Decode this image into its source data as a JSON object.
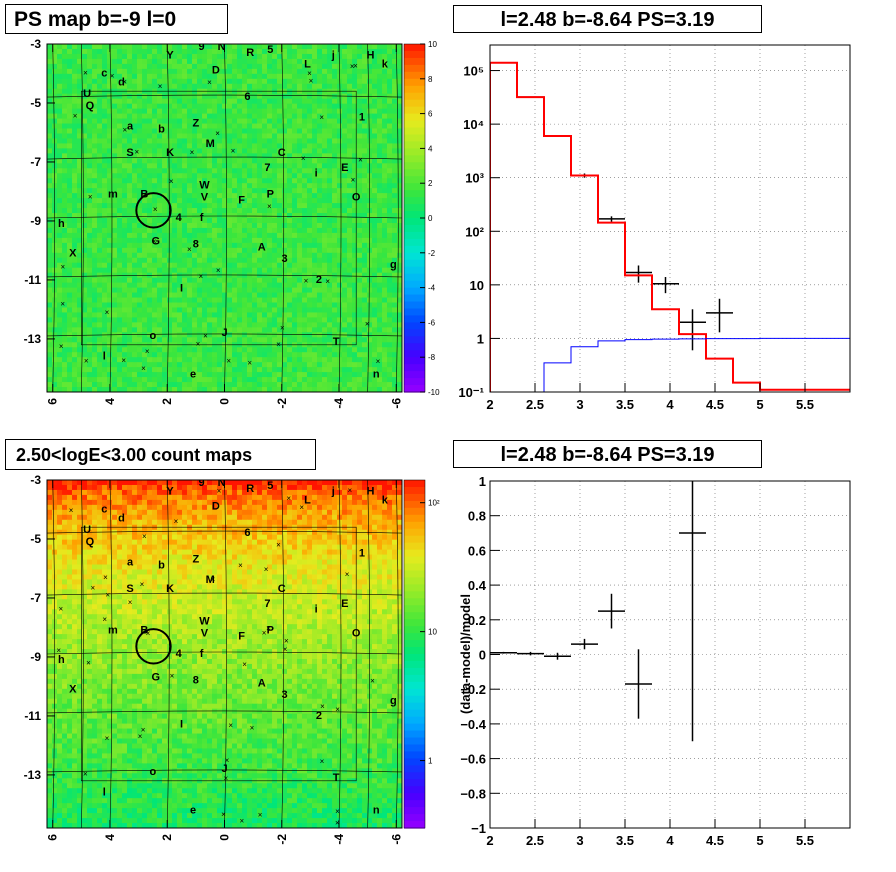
{
  "panels": {
    "ps_map_title": "PS map b=-9 l=0",
    "count_map_title": "2.50<logE<3.00 count maps",
    "spectrum_title": "l=2.48 b=-8.64 PS=3.19",
    "residual_title": "l=2.48 b=-8.64 PS=3.19"
  },
  "maps": {
    "x_ticks": [
      "6",
      "4",
      "2",
      "0",
      "-2",
      "-4",
      "-6"
    ],
    "y_ticks": [
      "-3",
      "-5",
      "-7",
      "-9",
      "-11",
      "-13"
    ],
    "ps_colorbar_ticks": [
      "10",
      "8",
      "6",
      "4",
      "2",
      "0",
      "-2",
      "-4",
      "-6",
      "-8",
      "-10"
    ],
    "count_colorbar_ticks": [
      "10²",
      "10",
      "1"
    ],
    "source_labels": [
      {
        "t": "Y",
        "l": 1.9,
        "b": -3.5
      },
      {
        "t": "9",
        "l": 0.8,
        "b": -3.2
      },
      {
        "t": "N",
        "l": 0.1,
        "b": -3.2
      },
      {
        "t": "R",
        "l": -0.9,
        "b": -3.4
      },
      {
        "t": "5",
        "l": -1.6,
        "b": -3.3
      },
      {
        "t": "L",
        "l": -2.9,
        "b": -3.8
      },
      {
        "t": "j",
        "l": -3.8,
        "b": -3.5
      },
      {
        "t": "H",
        "l": -5.1,
        "b": -3.5
      },
      {
        "t": "k",
        "l": -5.6,
        "b": -3.8
      },
      {
        "t": "c",
        "l": 4.2,
        "b": -4.1
      },
      {
        "t": "d",
        "l": 3.6,
        "b": -4.4
      },
      {
        "t": "D",
        "l": 0.3,
        "b": -4.0
      },
      {
        "t": "U",
        "l": 4.8,
        "b": -4.8
      },
      {
        "t": "Q",
        "l": 4.7,
        "b": -5.2
      },
      {
        "t": "6",
        "l": -0.8,
        "b": -4.9
      },
      {
        "t": "1",
        "l": -4.8,
        "b": -5.6
      },
      {
        "t": "a",
        "l": 3.3,
        "b": -5.9
      },
      {
        "t": "b",
        "l": 2.2,
        "b": -6.0
      },
      {
        "t": "Z",
        "l": 1.0,
        "b": -5.8
      },
      {
        "t": "M",
        "l": 0.5,
        "b": -6.5
      },
      {
        "t": "S",
        "l": 3.3,
        "b": -6.8
      },
      {
        "t": "K",
        "l": 1.9,
        "b": -6.8
      },
      {
        "t": "C",
        "l": -2.0,
        "b": -6.8
      },
      {
        "t": "7",
        "l": -1.5,
        "b": -7.3
      },
      {
        "t": "i",
        "l": -3.2,
        "b": -7.5
      },
      {
        "t": "E",
        "l": -4.2,
        "b": -7.3
      },
      {
        "t": "m",
        "l": 3.9,
        "b": -8.2
      },
      {
        "t": "B",
        "l": 2.8,
        "b": -8.2
      },
      {
        "t": "W",
        "l": 0.7,
        "b": -7.9
      },
      {
        "t": "V",
        "l": 0.7,
        "b": -8.3
      },
      {
        "t": "F",
        "l": -0.6,
        "b": -8.4
      },
      {
        "t": "P",
        "l": -1.6,
        "b": -8.2
      },
      {
        "t": "O",
        "l": -4.6,
        "b": -8.3
      },
      {
        "t": "4",
        "l": 1.6,
        "b": -9.0
      },
      {
        "t": "f",
        "l": 0.8,
        "b": -9.0
      },
      {
        "t": "h",
        "l": 5.7,
        "b": -9.2
      },
      {
        "t": "G",
        "l": 2.4,
        "b": -9.8
      },
      {
        "t": "8",
        "l": 1.0,
        "b": -9.9
      },
      {
        "t": "A",
        "l": -1.3,
        "b": -10.0
      },
      {
        "t": "3",
        "l": -2.1,
        "b": -10.4
      },
      {
        "t": "X",
        "l": 5.3,
        "b": -10.2
      },
      {
        "t": "g",
        "l": -5.9,
        "b": -10.6
      },
      {
        "t": "2",
        "l": -3.3,
        "b": -11.1
      },
      {
        "t": "I",
        "l": 1.5,
        "b": -11.4
      },
      {
        "t": "J",
        "l": 0.0,
        "b": -12.9
      },
      {
        "t": "o",
        "l": 2.5,
        "b": -13.0
      },
      {
        "t": "T",
        "l": -3.9,
        "b": -13.2
      },
      {
        "t": "l",
        "l": 4.2,
        "b": -13.7
      },
      {
        "t": "e",
        "l": 1.1,
        "b": -14.3
      },
      {
        "t": "n",
        "l": -5.3,
        "b": -14.3
      }
    ]
  },
  "spectrum": {
    "x_ticks": [
      "2",
      "2.5",
      "3",
      "3.5",
      "4",
      "4.5",
      "5",
      "5.5"
    ],
    "y_ticks": [
      "10⁻¹",
      "1",
      "10",
      "10²",
      "10³",
      "10⁴",
      "10⁵"
    ]
  },
  "residual": {
    "ylabel": "(data-model)/model",
    "x_ticks": [
      "2",
      "2.5",
      "3",
      "3.5",
      "4",
      "4.5",
      "5",
      "5.5"
    ],
    "y_ticks": [
      "1",
      "0.8",
      "0.6",
      "0.4",
      "0.2",
      "0",
      "−0.2",
      "−0.4",
      "−0.6",
      "−0.8",
      "−1"
    ]
  },
  "chart_data": [
    {
      "type": "heatmap",
      "title": "PS map b=-9 l=0",
      "xlim": [
        6.2,
        -6.2
      ],
      "ylim": [
        -14.8,
        -3
      ],
      "zlim": [
        -10,
        10
      ],
      "colorscale": "rainbow",
      "typical_value": 1.5,
      "circle_marker": {
        "l": 2.48,
        "b": -8.64,
        "radius_deg": 0.5
      }
    },
    {
      "type": "heatmap",
      "title": "2.50<logE<3.00 count maps",
      "xlim": [
        6.2,
        -6.2
      ],
      "ylim": [
        -14.8,
        -3
      ],
      "zscale": "log",
      "zlim": [
        0.3,
        150
      ],
      "colorscale": "rainbow",
      "top_value": 150,
      "bottom_value": 8,
      "circle_marker": {
        "l": 2.48,
        "b": -8.64,
        "radius_deg": 0.5
      }
    },
    {
      "type": "line",
      "title": "l=2.48 b=-8.64 PS=3.19",
      "yscale": "log",
      "xlim": [
        2,
        6
      ],
      "ylim": [
        0.1,
        300000
      ],
      "grid": true,
      "series": [
        {
          "color": "#000000",
          "points": [
            {
              "x": 2.15,
              "xerr": 0.15,
              "y": 140000,
              "ylo": 0,
              "yhi": 0
            },
            {
              "x": 2.45,
              "xerr": 0.15,
              "y": 32000,
              "ylo": 0,
              "yhi": 0
            },
            {
              "x": 2.75,
              "xerr": 0.15,
              "y": 6000,
              "ylo": 0,
              "yhi": 0
            },
            {
              "x": 3.05,
              "xerr": 0.15,
              "y": 1100,
              "ylo": 1000,
              "yhi": 1200
            },
            {
              "x": 3.35,
              "xerr": 0.15,
              "y": 170,
              "ylo": 150,
              "yhi": 190
            },
            {
              "x": 3.65,
              "xerr": 0.15,
              "y": 17,
              "ylo": 11,
              "yhi": 23
            },
            {
              "x": 3.95,
              "xerr": 0.15,
              "y": 10.5,
              "ylo": 7,
              "yhi": 14
            },
            {
              "x": 4.25,
              "xerr": 0.15,
              "y": 2,
              "ylo": 0.6,
              "yhi": 3.5
            },
            {
              "x": 4.55,
              "xerr": 0.15,
              "y": 3,
              "ylo": 1.3,
              "yhi": 5.5
            }
          ]
        },
        {
          "color": "#ff0000",
          "step_edges": [
            2.0,
            2.3,
            2.6,
            2.9,
            3.2,
            3.5,
            3.8,
            4.1,
            4.4,
            4.7,
            5.0,
            5.3,
            6.0
          ],
          "values": [
            140000,
            32000,
            6000,
            1100,
            145,
            15,
            3.5,
            1.2,
            0.42,
            0.15,
            0.11,
            0.11
          ]
        },
        {
          "color": "#0000ff",
          "step_edges": [
            2.6,
            2.9,
            3.2,
            3.5,
            3.8,
            4.1,
            4.4,
            4.7,
            5.0,
            5.3,
            6.0
          ],
          "values": [
            0.35,
            0.7,
            0.9,
            0.95,
            0.97,
            0.98,
            0.99,
            0.99,
            1.0,
            1.0
          ]
        }
      ]
    },
    {
      "type": "scatter",
      "title": "l=2.48 b=-8.64 PS=3.19",
      "ylabel": "(data-model)/model",
      "xlim": [
        2,
        6
      ],
      "ylim": [
        -1,
        1
      ],
      "grid": true,
      "points": [
        {
          "x": 2.15,
          "xerr": 0.15,
          "y": 0.01,
          "yerr": 0.005
        },
        {
          "x": 2.45,
          "xerr": 0.15,
          "y": 0.005,
          "yerr": 0.01
        },
        {
          "x": 2.75,
          "xerr": 0.15,
          "y": -0.01,
          "yerr": 0.02
        },
        {
          "x": 3.05,
          "xerr": 0.15,
          "y": 0.06,
          "yerr": 0.03
        },
        {
          "x": 3.35,
          "xerr": 0.15,
          "y": 0.25,
          "yerr": 0.1
        },
        {
          "x": 3.65,
          "xerr": 0.15,
          "y": -0.17,
          "yerr": 0.2
        },
        {
          "x": 4.25,
          "xerr": 0.15,
          "y": 0.7,
          "yerr": 1.2
        }
      ]
    }
  ]
}
